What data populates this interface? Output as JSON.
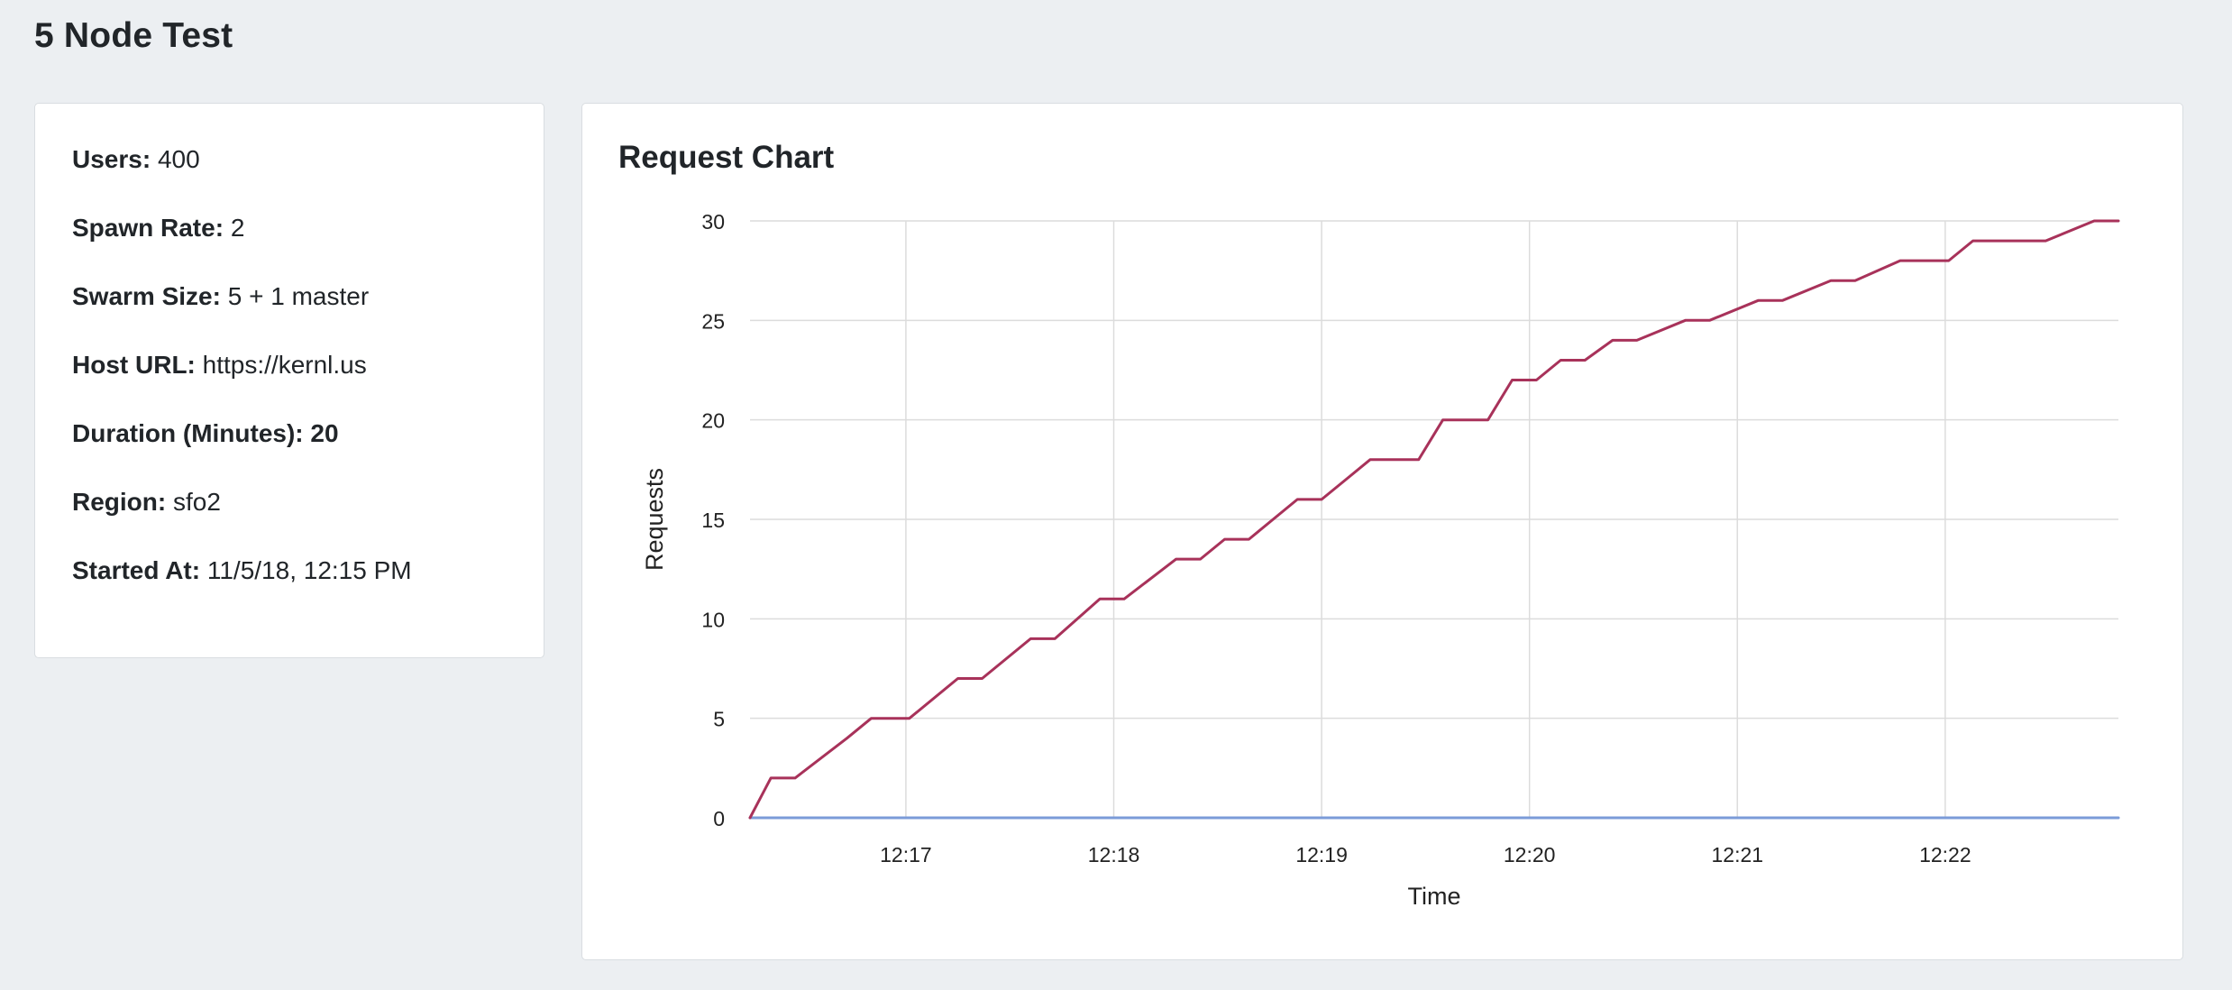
{
  "page": {
    "title": "5 Node Test"
  },
  "info": {
    "rows": [
      {
        "label": "Users:",
        "value": "400"
      },
      {
        "label": "Spawn Rate:",
        "value": "2"
      },
      {
        "label": "Swarm Size:",
        "value": "5 + 1 master"
      },
      {
        "label": "Host URL:",
        "value": "https://kernl.us"
      },
      {
        "label": "Duration (Minutes):",
        "value": "20"
      },
      {
        "label": "Region:",
        "value": "sfo2"
      },
      {
        "label": "Started At:",
        "value": "11/5/18, 12:15 PM"
      }
    ]
  },
  "chart": {
    "title": "Request Chart"
  },
  "chart_data": {
    "type": "line",
    "xlabel": "Time",
    "ylabel": "Requests",
    "xlim": [
      "12:16:15",
      "12:22:50"
    ],
    "ylim": [
      0,
      30
    ],
    "x_ticks": [
      "12:17",
      "12:18",
      "12:19",
      "12:20",
      "12:21",
      "12:22"
    ],
    "y_ticks": [
      0,
      5,
      10,
      15,
      20,
      25,
      30
    ],
    "grid": true,
    "legend": "none",
    "series": [
      {
        "color": "#a8325a",
        "x": [
          "12:16:15",
          "12:16:21",
          "12:16:28",
          "12:16:43",
          "12:16:50",
          "12:16:58",
          "12:17:01",
          "12:17:15",
          "12:17:22",
          "12:17:36",
          "12:17:43",
          "12:17:56",
          "12:18:03",
          "12:18:18",
          "12:18:25",
          "12:18:32",
          "12:18:39",
          "12:18:53",
          "12:19:00",
          "12:19:07",
          "12:19:14",
          "12:19:28",
          "12:19:35",
          "12:19:48",
          "12:19:55",
          "12:20:02",
          "12:20:09",
          "12:20:16",
          "12:20:24",
          "12:20:31",
          "12:20:45",
          "12:20:52",
          "12:21:06",
          "12:21:13",
          "12:21:27",
          "12:21:34",
          "12:21:47",
          "12:21:54",
          "12:22:01",
          "12:22:08",
          "12:22:22",
          "12:22:29",
          "12:22:43",
          "12:22:50"
        ],
        "y": [
          0,
          2,
          2,
          4,
          5,
          5,
          5,
          7,
          7,
          9,
          9,
          11,
          11,
          13,
          13,
          14,
          14,
          16,
          16,
          17,
          18,
          18,
          20,
          20,
          22,
          22,
          23,
          23,
          24,
          24,
          25,
          25,
          26,
          26,
          27,
          27,
          28,
          28,
          28,
          29,
          29,
          29,
          30,
          30
        ]
      },
      {
        "color": "#7b9bd8",
        "x": [
          "12:16:15",
          "12:22:50"
        ],
        "y": [
          0,
          0
        ]
      }
    ]
  }
}
